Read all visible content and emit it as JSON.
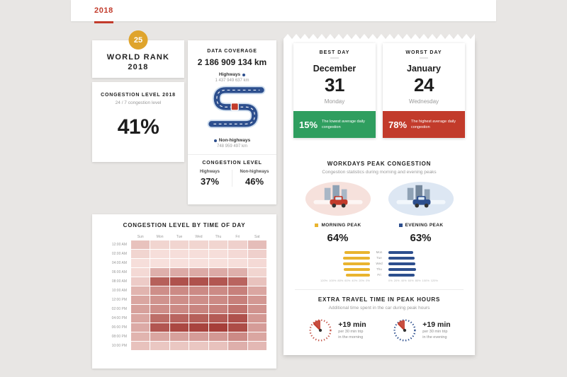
{
  "tab": {
    "label": "2018"
  },
  "world_rank": {
    "badge": "25",
    "line1": "WORLD RANK",
    "line2": "2018"
  },
  "congestion_2018": {
    "title": "CONGESTION LEVEL 2018",
    "subtitle": "24 / 7 congestion level",
    "value": "41%"
  },
  "data_coverage": {
    "title": "DATA COVERAGE",
    "total_km": "2 186 909 134 km",
    "highways": {
      "label": "Highways",
      "km": "1 437 949 637 km"
    },
    "non_highways": {
      "label": "Non-highways",
      "km": "748 959 497 km"
    },
    "congestion": {
      "title": "CONGESTION LEVEL",
      "highways_label": "Highways",
      "highways_value": "37%",
      "non_highways_label": "Non-highways",
      "non_highways_value": "46%"
    }
  },
  "best_day": {
    "title": "BEST DAY",
    "month": "December",
    "day": "31",
    "weekday": "Monday",
    "percent": "15%",
    "caption": "The lowest average daily congestion",
    "banner_color": "#2f9e5f"
  },
  "worst_day": {
    "title": "WORST DAY",
    "month": "January",
    "day": "24",
    "weekday": "Wednesday",
    "percent": "78%",
    "caption": "The highest average daily congestion",
    "banner_color": "#c23b2b"
  },
  "workdays_peak": {
    "title": "WORKDAYS PEAK CONGESTION",
    "subtitle": "Congestion statistics during morning and evening peaks",
    "morning": {
      "label": "MORNING PEAK",
      "value": "64%",
      "color": "#e9b42f"
    },
    "evening": {
      "label": "EVENING PEAK",
      "value": "63%",
      "color": "#2d4f8e"
    }
  },
  "extra_travel": {
    "title": "EXTRA TRAVEL TIME IN PEAK HOURS",
    "subtitle": "Additional time spent in the car during peak hours",
    "morning": {
      "value": "+19 min",
      "per": "per 30 min trip",
      "when": "in the morning"
    },
    "evening": {
      "value": "+19 min",
      "per": "per 30 min trip",
      "when": "in the evening"
    }
  },
  "chart_data": [
    {
      "type": "heatmap",
      "title": "CONGESTION LEVEL BY TIME OF DAY",
      "columns": [
        "Sun",
        "Mon",
        "Tue",
        "Wed",
        "Thu",
        "Fri",
        "Sat"
      ],
      "rows": [
        "12:00 AM",
        "02:00 AM",
        "04:00 AM",
        "06:00 AM",
        "08:00 AM",
        "10:00 AM",
        "12:00 PM",
        "02:00 PM",
        "04:00 PM",
        "06:00 PM",
        "08:00 PM",
        "10:00 PM"
      ],
      "values": [
        [
          18,
          10,
          10,
          10,
          10,
          12,
          20
        ],
        [
          10,
          6,
          6,
          6,
          6,
          8,
          12
        ],
        [
          6,
          5,
          5,
          5,
          5,
          6,
          8
        ],
        [
          8,
          26,
          28,
          28,
          28,
          26,
          10
        ],
        [
          14,
          60,
          66,
          66,
          64,
          58,
          18
        ],
        [
          24,
          40,
          42,
          42,
          42,
          46,
          30
        ],
        [
          30,
          38,
          40,
          40,
          42,
          46,
          36
        ],
        [
          32,
          40,
          42,
          44,
          46,
          52,
          38
        ],
        [
          30,
          54,
          58,
          60,
          62,
          66,
          36
        ],
        [
          28,
          64,
          70,
          72,
          74,
          68,
          34
        ],
        [
          24,
          30,
          32,
          34,
          36,
          42,
          30
        ],
        [
          18,
          16,
          16,
          16,
          18,
          26,
          22
        ]
      ],
      "value_unit": "percent congestion",
      "color_low": "#fdecE8",
      "color_high": "#99251f",
      "legend_position": "none"
    },
    {
      "type": "bar",
      "orientation": "horizontal-mirrored",
      "title": "WORKDAYS PEAK CONGESTION",
      "categories": [
        "Mon",
        "Tue",
        "Wed",
        "Thu",
        "Fri"
      ],
      "series": [
        {
          "name": "MORNING PEAK",
          "color": "#e9b42f",
          "values": [
            62,
            65,
            66,
            64,
            58
          ]
        },
        {
          "name": "EVENING PEAK",
          "color": "#2d4f8e",
          "values": [
            60,
            63,
            65,
            66,
            64
          ]
        }
      ],
      "x_ticks": [
        "120%",
        "100%",
        "80%",
        "60%",
        "40%",
        "20%",
        "0%"
      ],
      "xlim": [
        0,
        120
      ],
      "legend_position": "above"
    }
  ]
}
